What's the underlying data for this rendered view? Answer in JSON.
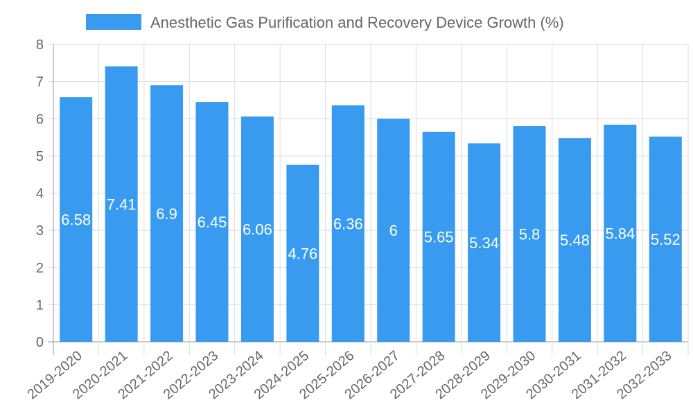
{
  "chart_data": {
    "type": "bar",
    "title": "",
    "xlabel": "",
    "ylabel": "",
    "ylim": [
      0,
      8
    ],
    "yticks": [
      "0",
      "1",
      "2",
      "3",
      "4",
      "5",
      "6",
      "7",
      "8"
    ],
    "grid": true,
    "legend_placement": "top-center",
    "categories": [
      "2019-2020",
      "2020-2021",
      "2021-2022",
      "2022-2023",
      "2023-2024",
      "2024-2025",
      "2025-2026",
      "2026-2027",
      "2027-2028",
      "2028-2029",
      "2029-2030",
      "2030-2031",
      "2031-2032",
      "2032-2033"
    ],
    "series": [
      {
        "name": "Anesthetic Gas Purification and Recovery Device Growth (%)",
        "color": "#389bf0",
        "values": [
          6.58,
          7.41,
          6.9,
          6.45,
          6.06,
          4.76,
          6.36,
          6,
          5.65,
          5.34,
          5.8,
          5.48,
          5.84,
          5.52
        ]
      }
    ]
  }
}
